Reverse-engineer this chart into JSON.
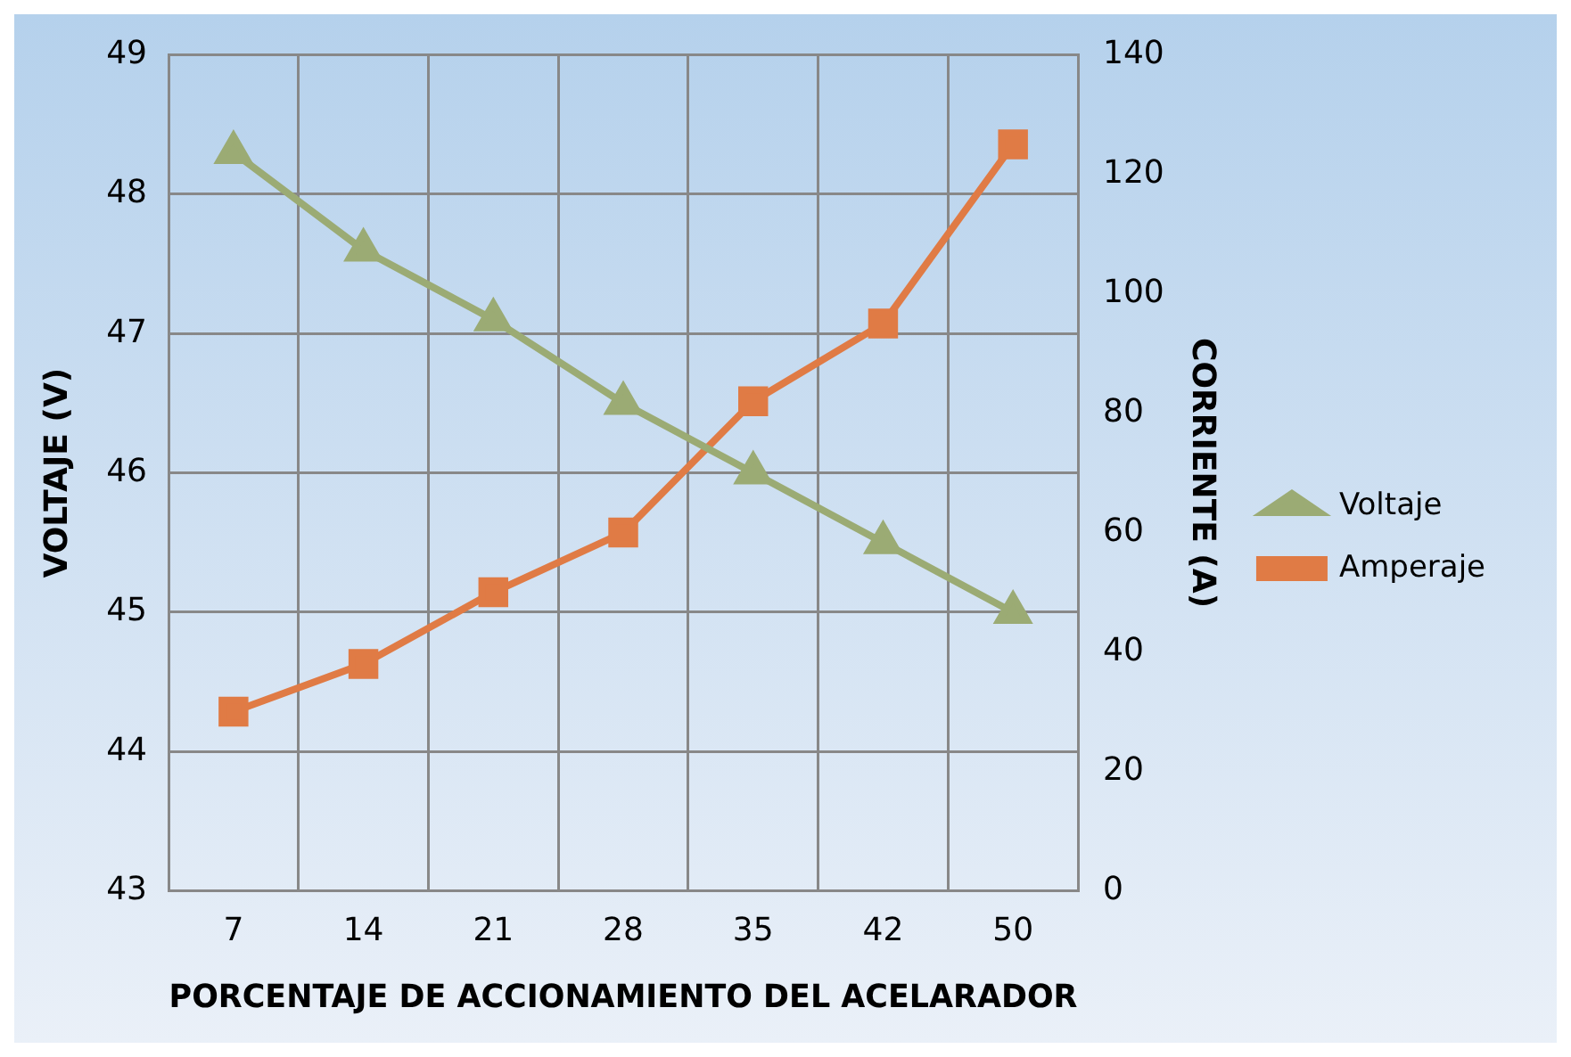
{
  "chart_data": {
    "type": "line",
    "xlabel": "PORCENTAJE DE ACCIONAMIENTO DEL ACELARADOR",
    "ylabel": "VOLTAJE (V)",
    "y2label": "CORRIENTE (A)",
    "categories": [
      "7",
      "14",
      "21",
      "28",
      "35",
      "42",
      "50"
    ],
    "series": [
      {
        "name": "Voltaje",
        "color": "#9bab74",
        "marker": "triangle",
        "values": [
          48.3,
          47.6,
          47.1,
          46.5,
          46.0,
          45.5,
          45.0
        ]
      },
      {
        "name": "Amperaje",
        "color": "#e07b45",
        "marker": "square",
        "axis": "y2",
        "values": [
          30,
          38,
          50,
          60,
          82,
          95,
          125
        ]
      }
    ],
    "ylim": [
      43,
      49
    ],
    "yticks": [
      43,
      44,
      45,
      46,
      47,
      48,
      49
    ],
    "y2lim": [
      0,
      140
    ],
    "y2ticks": [
      0,
      20,
      40,
      60,
      80,
      100,
      120,
      140
    ],
    "grid": true,
    "legend": "right"
  }
}
